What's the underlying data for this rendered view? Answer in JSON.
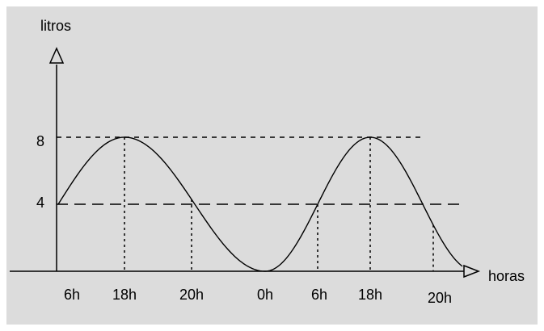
{
  "chart_data": {
    "type": "line",
    "ylabel": "litros",
    "xlabel": "horas",
    "y_ticks": [
      "8",
      "4"
    ],
    "y_tick_values": [
      8,
      4
    ],
    "x_ticks": [
      "6h",
      "18h",
      "20h",
      "0h",
      "6h",
      "18h",
      "20h"
    ],
    "ylim": [
      0,
      10
    ],
    "grid": false,
    "series": [
      {
        "x": [
          "6h",
          "18h",
          "20h",
          "0h",
          "6h",
          "18h",
          "20h"
        ],
        "values": [
          4,
          8,
          4,
          0,
          4,
          8,
          4
        ]
      }
    ]
  }
}
